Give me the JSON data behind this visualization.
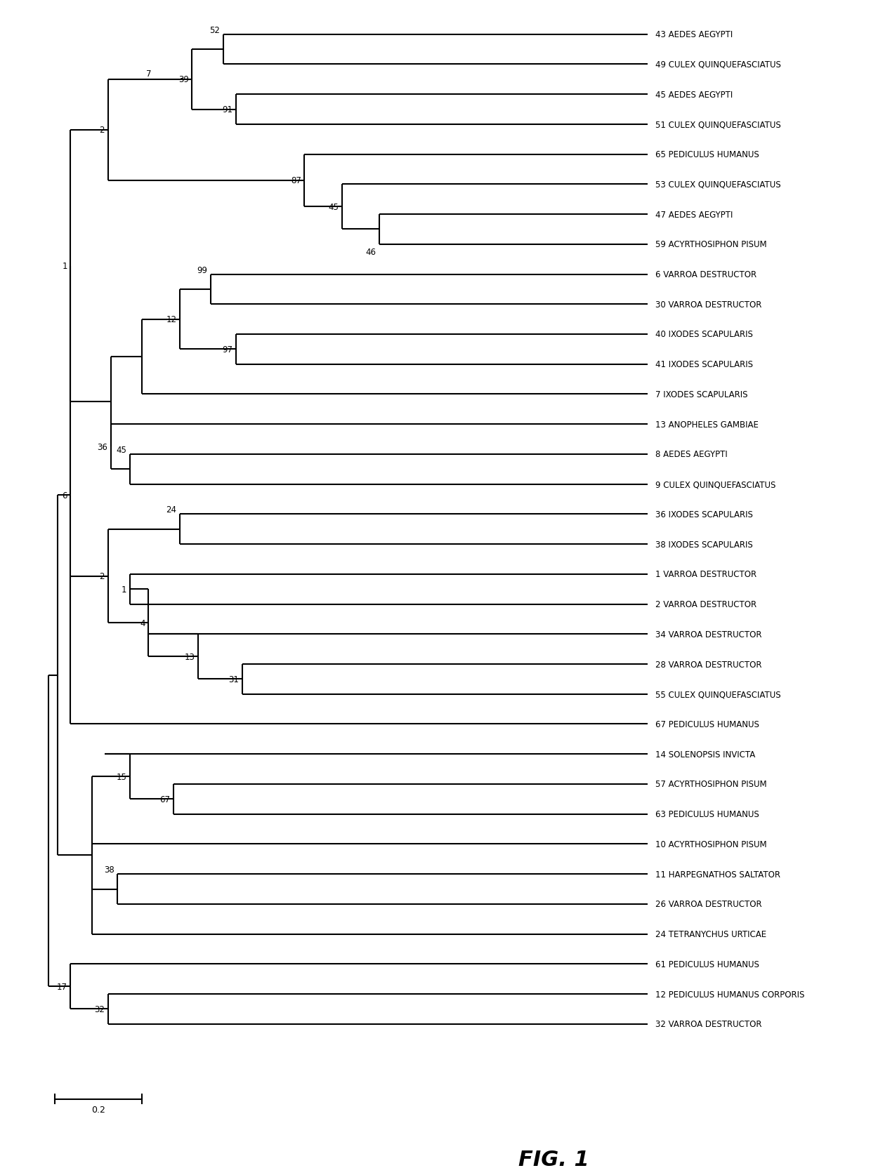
{
  "title": "FIG. 1",
  "background_color": "#ffffff",
  "line_color": "#000000",
  "text_color": "#000000",
  "leaf_labels": [
    "43 AEDES AEGYPTI",
    "49 CULEX QUINQUEFASCIATUS",
    "45 AEDES AEGYPTI",
    "51 CULEX QUINQUEFASCIATUS",
    "65 PEDICULUS HUMANUS",
    "53 CULEX QUINQUEFASCIATUS",
    "47 AEDES AEGYPTI",
    "59 ACYRTHOSIPHON PISUM",
    "6 VARROA DESTRUCTOR",
    "30 VARROA DESTRUCTOR",
    "40 IXODES SCAPULARIS",
    "41 IXODES SCAPULARIS",
    "7 IXODES SCAPULARIS",
    "13 ANOPHELES GAMBIAE",
    "8 AEDES AEGYPTI",
    "9 CULEX QUINQUEFASCIATUS",
    "36 IXODES SCAPULARIS",
    "38 IXODES SCAPULARIS",
    "1 VARROA DESTRUCTOR",
    "2 VARROA DESTRUCTOR",
    "34 VARROA DESTRUCTOR",
    "28 VARROA DESTRUCTOR",
    "55 CULEX QUINQUEFASCIATUS",
    "67 PEDICULUS HUMANUS",
    "14 SOLENOPSIS INVICTA",
    "57 ACYRTHOSIPHON PISUM",
    "63 PEDICULUS HUMANUS",
    "10 ACYRTHOSIPHON PISUM",
    "11 HARPEGNATHOS SALTATOR",
    "26 VARROA DESTRUCTOR",
    "24 TETRANYCHUS URTICAE",
    "61 PEDICULUS HUMANUS",
    "12 PEDICULUS HUMANUS CORPORIS",
    "32 VARROA DESTRUCTOR"
  ],
  "scale_label": "0.2"
}
